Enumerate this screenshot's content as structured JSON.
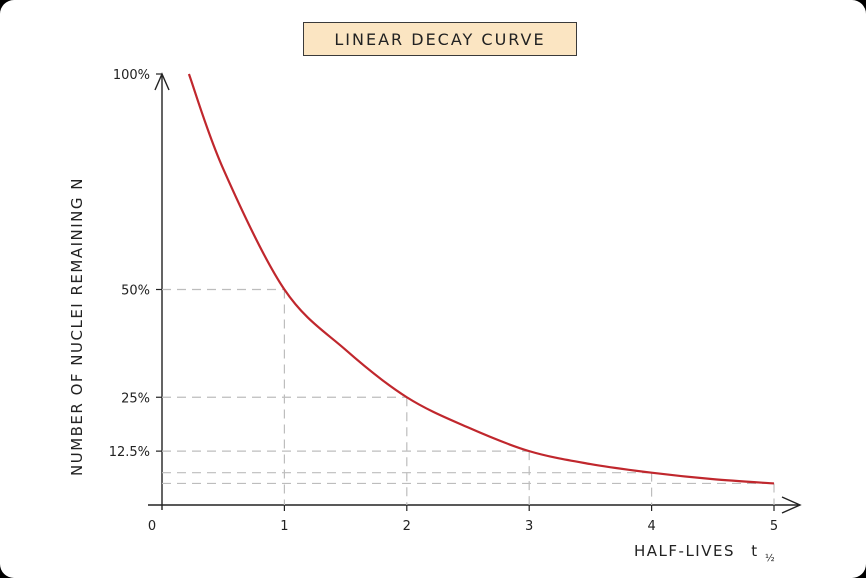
{
  "chart_data": {
    "type": "line",
    "title": "LINEAR DECAY CURVE",
    "xlabel": "HALF-LIVES",
    "xlabel_symbol": "t",
    "xlabel_subscript": "½",
    "ylabel": "NUMBER OF NUCLEI REMAINING N",
    "x_ticks": [
      "0",
      "1",
      "2",
      "3",
      "4",
      "5"
    ],
    "y_ticks": [
      {
        "label": "100%",
        "value": 100
      },
      {
        "label": "50%",
        "value": 50
      },
      {
        "label": "25%",
        "value": 25
      },
      {
        "label": "12.5%",
        "value": 12.5
      }
    ],
    "xlim": [
      0,
      5
    ],
    "ylim": [
      0,
      100
    ],
    "series": [
      {
        "color": "#c0272d",
        "x": [
          0.22,
          0.5,
          1,
          1.5,
          2,
          2.5,
          3,
          3.5,
          4,
          4.5,
          5
        ],
        "y": [
          100,
          78,
          50,
          36,
          25,
          18,
          12.5,
          9.5,
          7.5,
          6,
          5
        ]
      }
    ],
    "guide_points": [
      {
        "x": 1,
        "y": 50
      },
      {
        "x": 2,
        "y": 25
      },
      {
        "x": 3,
        "y": 12.5
      },
      {
        "x": 4,
        "y": 7.5
      },
      {
        "x": 5,
        "y": 5
      }
    ],
    "grid": false
  }
}
